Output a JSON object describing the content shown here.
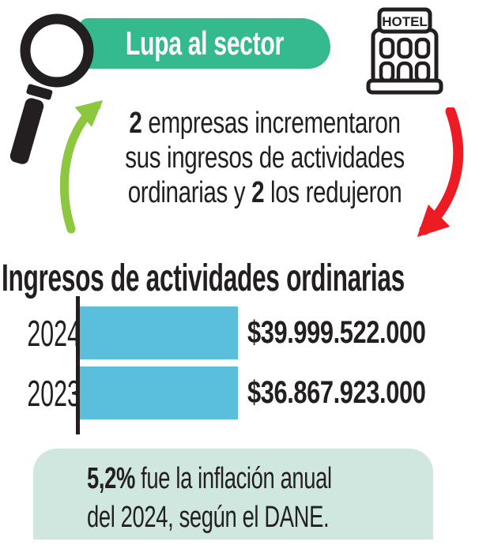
{
  "colors": {
    "banner_teal": "#35b98e",
    "arrow_green": "#8dc63f",
    "arrow_red": "#ed1c24",
    "bar_blue": "#5abfdb",
    "note_mint": "#cfe7de",
    "ink": "#231f20"
  },
  "header": {
    "banner_label": "Lupa al sector",
    "hotel_sign_label": "HOTEL"
  },
  "summary": {
    "count_up": "2",
    "line1_rest": " empresas incrementaron",
    "line2": "sus ingresos de actividades",
    "line3_pre": "ordinarias y ",
    "count_down": "2",
    "line3_post": " los redujeron"
  },
  "chart_data": {
    "type": "bar",
    "orientation": "horizontal",
    "title": "Ingresos de actividades ordinarias",
    "categories": [
      "2024",
      "2023"
    ],
    "values": [
      39999522000,
      36867923000
    ],
    "value_labels": [
      "$39.999.522.000",
      "$36.867.923.000"
    ],
    "xlabel": "",
    "ylabel": "",
    "xlim": [
      0,
      39999522000
    ],
    "grid": false,
    "legend": false,
    "bar_color": "#5abfdb",
    "axis_color": "#231f20"
  },
  "footnote": {
    "highlight": "5,2%",
    "line1_rest": " fue la inflación anual",
    "line2": "del 2024, según el DANE."
  }
}
